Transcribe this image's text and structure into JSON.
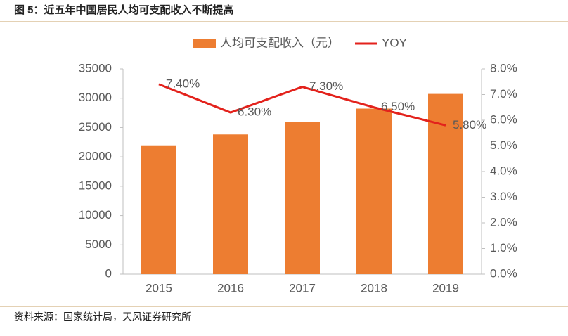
{
  "chart_data": {
    "type": "bar-line",
    "title": "图 5：近五年中国居民人均可支配收入不断提高",
    "source": "资料来源：国家统计局，天风证券研究所",
    "categories": [
      "2015",
      "2016",
      "2017",
      "2018",
      "2019"
    ],
    "series": [
      {
        "name": "人均可支配收入（元）",
        "type": "bar",
        "color": "#ed7d31",
        "values": [
          21966,
          23821,
          25974,
          28228,
          30733
        ]
      },
      {
        "name": "YOY",
        "type": "line",
        "axis": "y2",
        "color": "#e3221c",
        "values": [
          7.4,
          6.3,
          7.3,
          6.5,
          5.8
        ],
        "value_labels": [
          "7.40%",
          "6.30%",
          "7.30%",
          "6.50%",
          "5.80%"
        ]
      }
    ],
    "ylim": [
      0,
      35000
    ],
    "yticks": [
      0,
      5000,
      10000,
      15000,
      20000,
      25000,
      30000,
      35000
    ],
    "y2lim": [
      0,
      8
    ],
    "y2ticks": [
      {
        "value": 0,
        "label": "0.0%"
      },
      {
        "value": 1,
        "label": "1.0%"
      },
      {
        "value": 2,
        "label": "2.0%"
      },
      {
        "value": 3,
        "label": "3.0%"
      },
      {
        "value": 4,
        "label": "4.0%"
      },
      {
        "value": 5,
        "label": "5.0%"
      },
      {
        "value": 6,
        "label": "6.0%"
      },
      {
        "value": 7,
        "label": "7.0%"
      },
      {
        "value": 8,
        "label": "8.0%"
      }
    ],
    "legend": "top"
  }
}
